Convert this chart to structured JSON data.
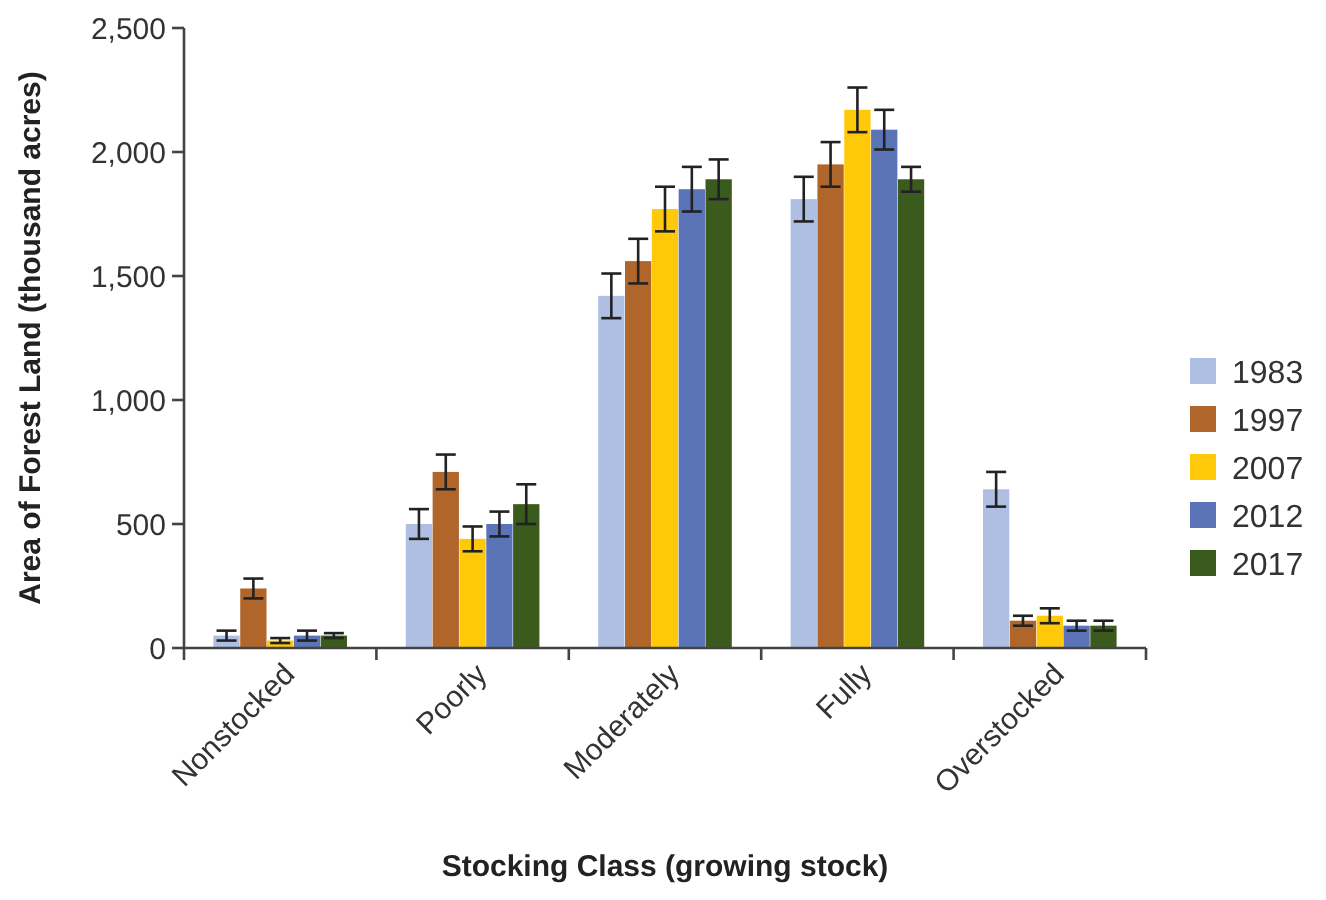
{
  "chart_data": {
    "type": "bar",
    "xlabel": "Stocking Class (growing stock)",
    "ylabel": "Area of Forest Land (thousand acres)",
    "categories": [
      "Nonstocked",
      "Poorly",
      "Moderately",
      "Fully",
      "Overstocked"
    ],
    "series": [
      {
        "name": "1983",
        "color": "#aebfe3",
        "values": [
          50,
          500,
          1420,
          1810,
          640
        ],
        "errors": [
          20,
          60,
          90,
          90,
          70
        ]
      },
      {
        "name": "1997",
        "color": "#b0652a",
        "values": [
          240,
          710,
          1560,
          1950,
          110
        ],
        "errors": [
          40,
          70,
          90,
          90,
          20
        ]
      },
      {
        "name": "2007",
        "color": "#ffc90a",
        "values": [
          30,
          440,
          1770,
          2170,
          130
        ],
        "errors": [
          10,
          50,
          90,
          90,
          30
        ]
      },
      {
        "name": "2012",
        "color": "#5b74b8",
        "values": [
          50,
          500,
          1850,
          2090,
          90
        ],
        "errors": [
          20,
          50,
          90,
          80,
          20
        ]
      },
      {
        "name": "2017",
        "color": "#3b5a1e",
        "values": [
          50,
          580,
          1890,
          1890,
          90
        ],
        "errors": [
          10,
          80,
          80,
          50,
          20
        ]
      }
    ],
    "ylim": [
      0,
      2500
    ],
    "yticks": [
      {
        "value": 0,
        "label": "0"
      },
      {
        "value": 500,
        "label": "500"
      },
      {
        "value": 1000,
        "label": "1,000"
      },
      {
        "value": 1500,
        "label": "1,500"
      },
      {
        "value": 2000,
        "label": "2,000"
      },
      {
        "value": 2500,
        "label": "2,500"
      }
    ],
    "grid": false,
    "legend": "right"
  }
}
